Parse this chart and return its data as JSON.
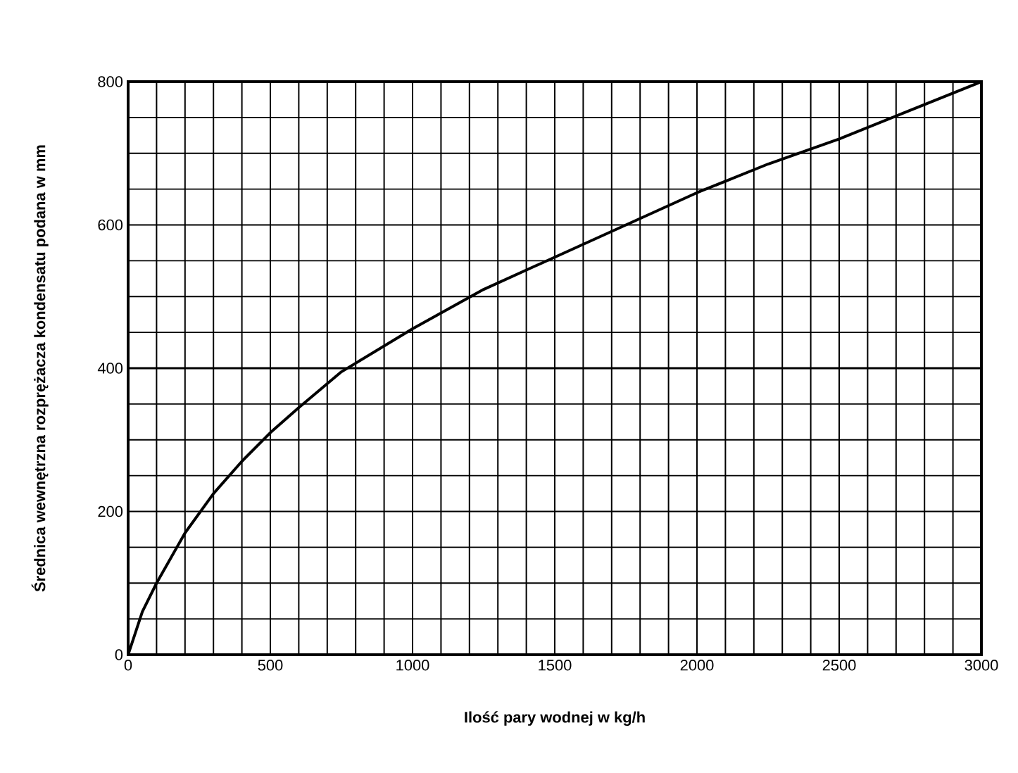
{
  "chart_data": {
    "type": "line",
    "xlabel": "Ilość pary wodnej w kg/h",
    "ylabel": "Średnica wewnętrzna rozprężacza kondensatu podana w mm",
    "x": [
      0,
      50,
      100,
      200,
      300,
      400,
      500,
      600,
      750,
      1000,
      1250,
      1500,
      1750,
      2000,
      2250,
      2500,
      2750,
      3000
    ],
    "series": [
      {
        "color": "#000000",
        "values": [
          0,
          60,
          100,
          170,
          225,
          270,
          310,
          345,
          395,
          455,
          510,
          555,
          600,
          645,
          685,
          720,
          760,
          800
        ]
      }
    ],
    "xlim": [
      0,
      3000
    ],
    "ylim": [
      0,
      800
    ],
    "xticks": [
      0,
      {
        "value": 100,
        "label": null
      },
      {
        "value": 200,
        "label": null
      },
      {
        "value": 300,
        "label": null
      },
      {
        "value": 400,
        "label": null
      },
      500,
      {
        "value": 600,
        "label": null
      },
      {
        "value": 700,
        "label": null
      },
      {
        "value": 800,
        "label": null
      },
      {
        "value": 900,
        "label": null
      },
      1000,
      {
        "value": 1100,
        "label": null
      },
      {
        "value": 1200,
        "label": null
      },
      {
        "value": 1300,
        "label": null
      },
      {
        "value": 1400,
        "label": null
      },
      1500,
      {
        "value": 1600,
        "label": null
      },
      {
        "value": 1700,
        "label": null
      },
      {
        "value": 1800,
        "label": null
      },
      {
        "value": 1900,
        "label": null
      },
      2000,
      {
        "value": 2100,
        "label": null
      },
      {
        "value": 2200,
        "label": null
      },
      {
        "value": 2300,
        "label": null
      },
      {
        "value": 2400,
        "label": null
      },
      2500,
      {
        "value": 2600,
        "label": null
      },
      {
        "value": 2700,
        "label": null
      },
      {
        "value": 2800,
        "label": null
      },
      {
        "value": 2900,
        "label": null
      },
      3000
    ],
    "yticks": [
      0,
      {
        "value": 50,
        "label": null
      },
      {
        "value": 100,
        "label": null
      },
      {
        "value": 150,
        "label": null
      },
      200,
      {
        "value": 250,
        "label": null
      },
      {
        "value": 300,
        "label": null
      },
      {
        "value": 350,
        "label": null
      },
      400,
      {
        "value": 450,
        "label": null
      },
      {
        "value": 500,
        "label": null
      },
      {
        "value": 550,
        "label": null
      },
      600,
      {
        "value": 650,
        "label": null
      },
      {
        "value": 700,
        "label": null
      },
      {
        "value": 750,
        "label": null
      },
      800
    ],
    "grid": true,
    "marker": "none",
    "line_style": "solid",
    "ref_lines": [
      {
        "axis": "y",
        "value": 400,
        "color": "#000000"
      }
    ]
  }
}
